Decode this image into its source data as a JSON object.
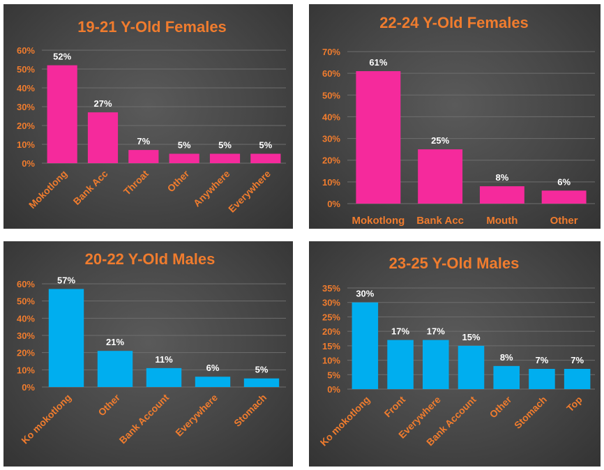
{
  "colors": {
    "pink": "#f52a9c",
    "blue": "#00aeef",
    "orange": "#f07c2e",
    "white": "#ffffff"
  },
  "chart_data": [
    {
      "type": "bar",
      "title": "19-21 Y-Old Females",
      "categories": [
        "Mokotlong",
        "Bank Acc",
        "Throat",
        "Other",
        "Anywhere",
        "Everywhere"
      ],
      "values": [
        52,
        27,
        7,
        5,
        5,
        5
      ],
      "data_labels": [
        "52%",
        "27%",
        "7%",
        "5%",
        "5%",
        "5%"
      ],
      "yticks": [
        "0%",
        "10%",
        "20%",
        "30%",
        "40%",
        "50%",
        "60%"
      ],
      "ylim": [
        0,
        60
      ],
      "grid": true,
      "color": "#f52a9c"
    },
    {
      "type": "bar",
      "title": "22-24 Y-Old Females",
      "categories": [
        "Mokotlong",
        "Bank Acc",
        "Mouth",
        "Other"
      ],
      "values": [
        61,
        25,
        8,
        6
      ],
      "data_labels": [
        "61%",
        "25%",
        "8%",
        "6%"
      ],
      "yticks": [
        "0%",
        "10%",
        "20%",
        "30%",
        "40%",
        "50%",
        "60%",
        "70%"
      ],
      "ylim": [
        0,
        70
      ],
      "grid": true,
      "color": "#f52a9c"
    },
    {
      "type": "bar",
      "title": "20-22 Y-Old Males",
      "categories": [
        "Ko mokotlong",
        "Other",
        "Bank Account",
        "Everywhere",
        "Stomach"
      ],
      "values": [
        57,
        21,
        11,
        6,
        5
      ],
      "data_labels": [
        "57%",
        "21%",
        "11%",
        "6%",
        "5%"
      ],
      "yticks": [
        "0%",
        "10%",
        "20%",
        "30%",
        "40%",
        "50%",
        "60%"
      ],
      "ylim": [
        0,
        60
      ],
      "grid": true,
      "color": "#00aeef"
    },
    {
      "type": "bar",
      "title": "23-25 Y-Old Males",
      "categories": [
        "Ko mokotlong",
        "Front",
        "Everywhere",
        "Bank Account",
        "Other",
        "Stomach",
        "Top"
      ],
      "values": [
        30,
        17,
        17,
        15,
        8,
        7,
        7
      ],
      "data_labels": [
        "30%",
        "17%",
        "17%",
        "15%",
        "8%",
        "7%",
        "7%"
      ],
      "yticks": [
        "0%",
        "5%",
        "10%",
        "15%",
        "20%",
        "25%",
        "30%",
        "35%"
      ],
      "ylim": [
        0,
        35
      ],
      "grid": true,
      "color": "#00aeef"
    }
  ]
}
